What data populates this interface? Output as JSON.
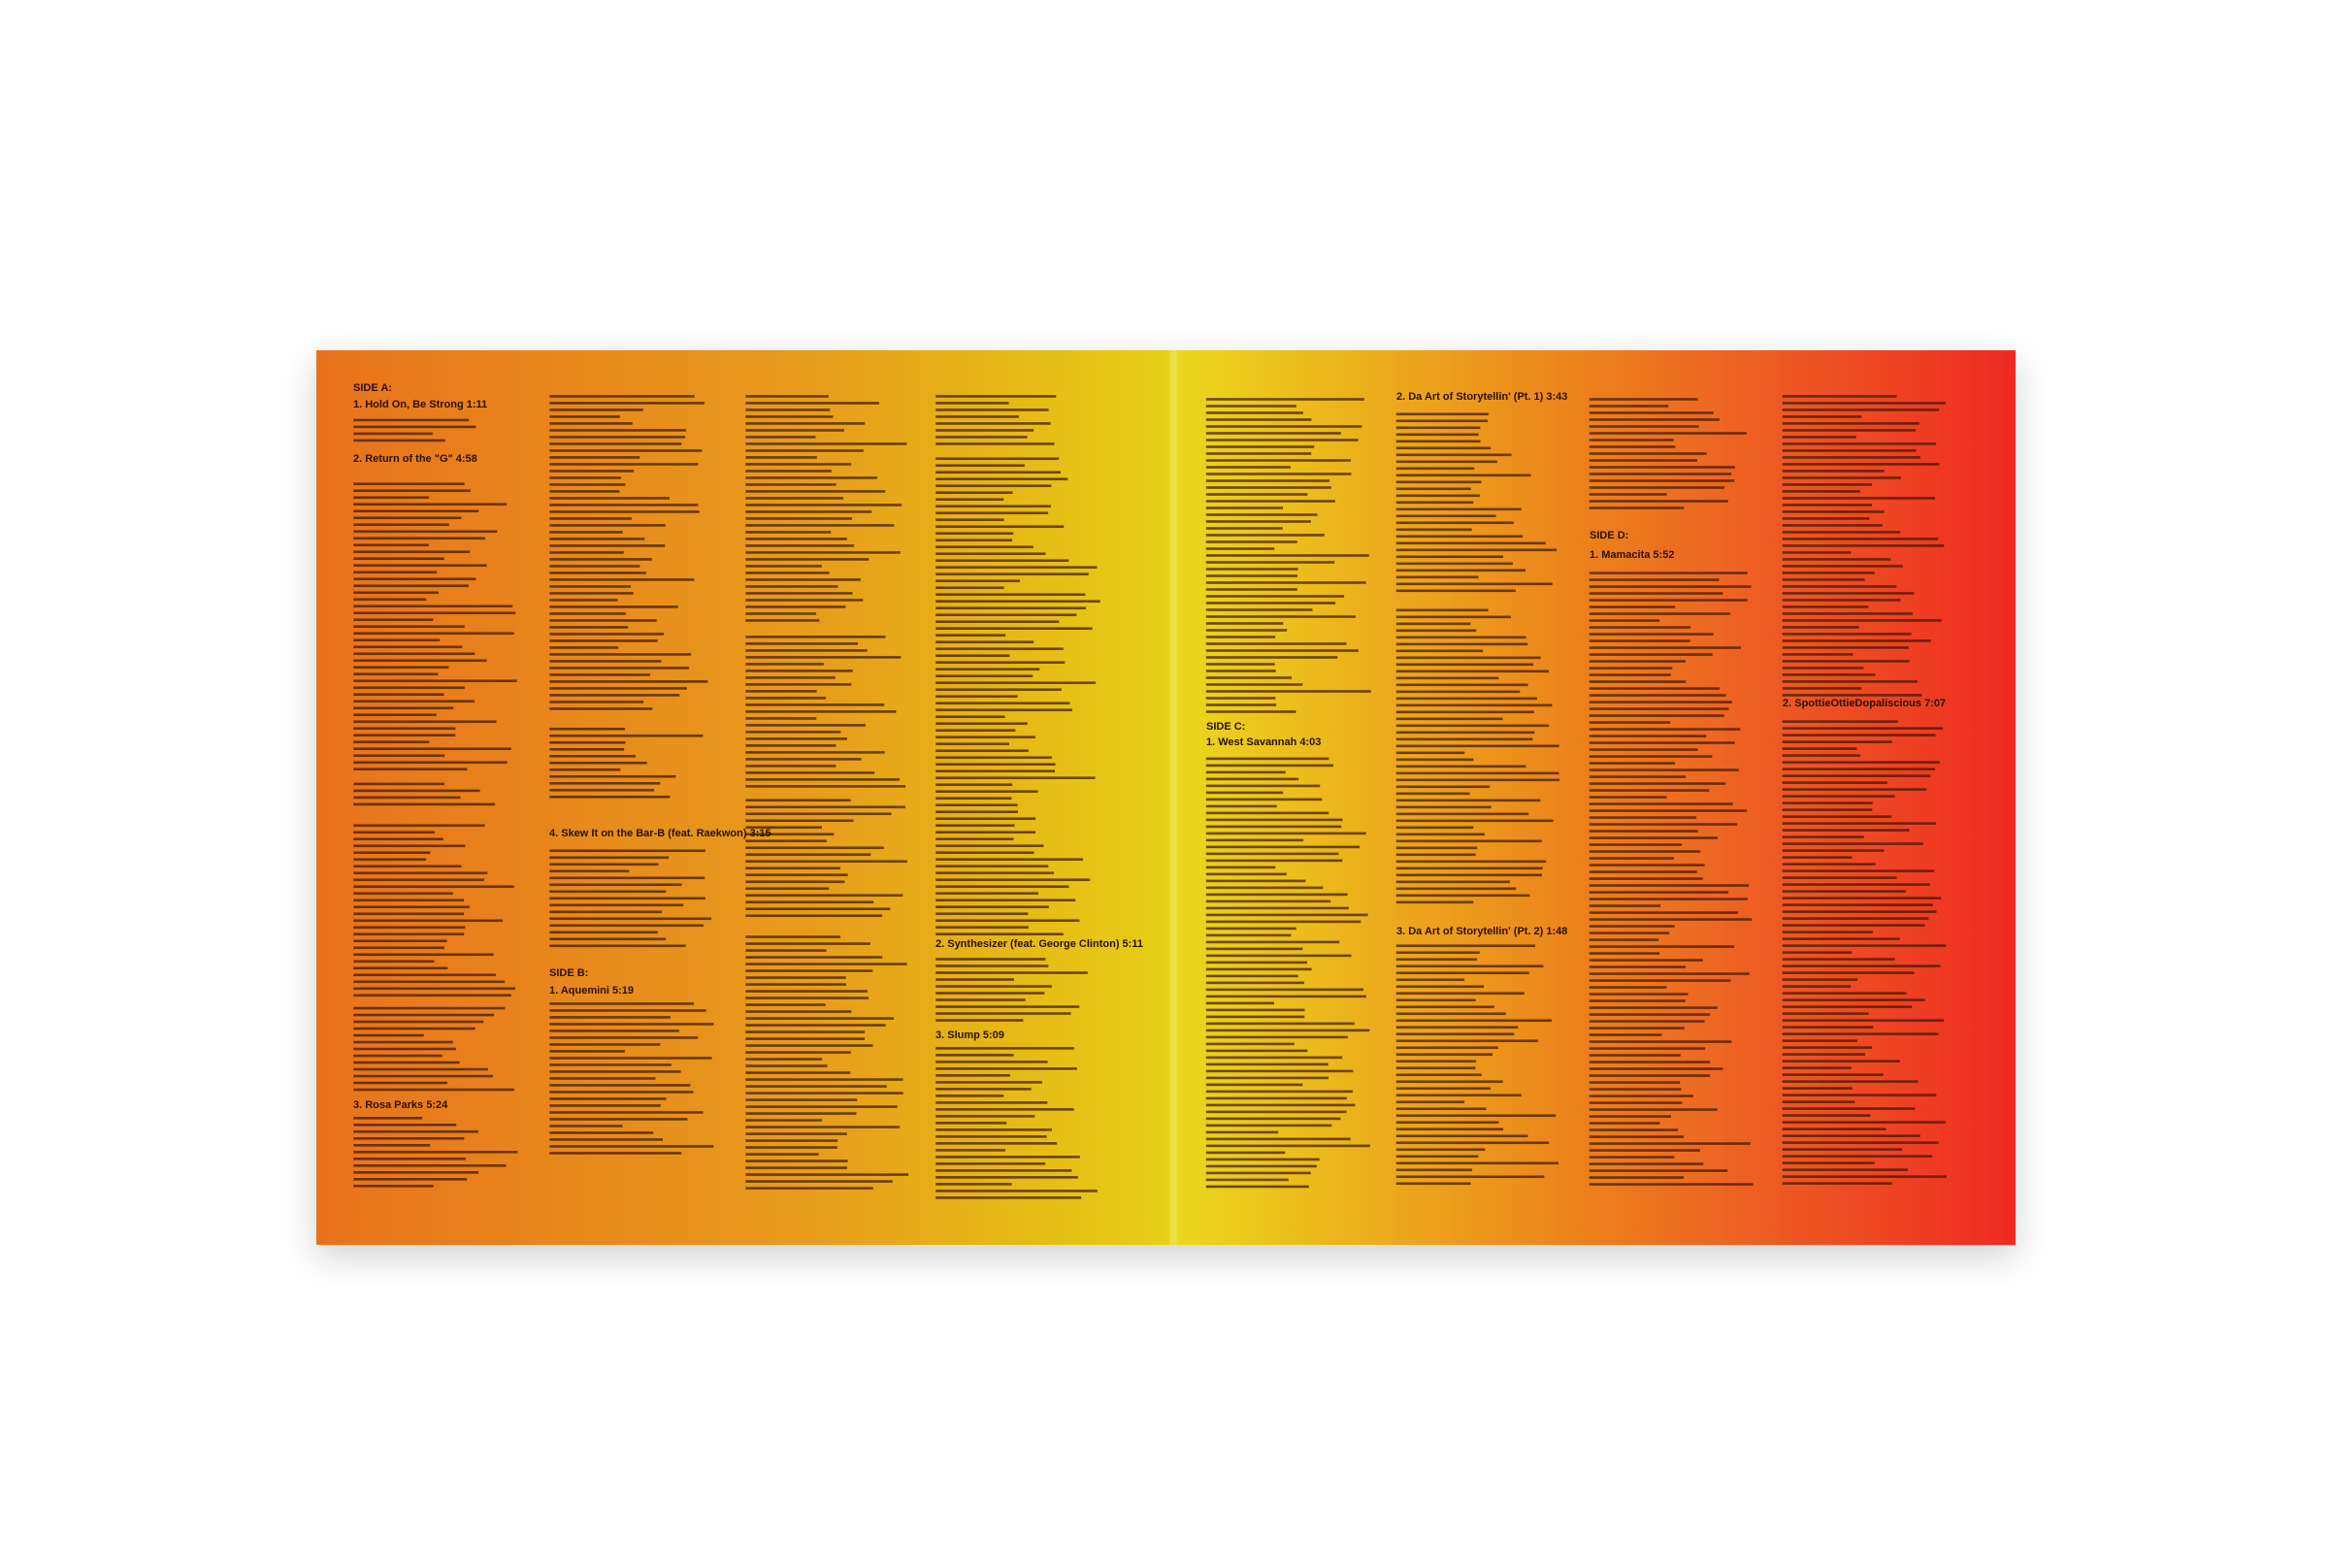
{
  "sides": [
    {
      "label": "SIDE A:",
      "tracks": [
        "1. Hold On, Be Strong 1:11",
        "2. Return of the \"G\" 4:58",
        "3. Rosa Parks 5:24",
        "4. Skew It on the Bar-B (feat. Raekwon) 3:15"
      ]
    },
    {
      "label": "SIDE B:",
      "tracks": [
        "1. Aquemini 5:19",
        "2. Synthesizer (feat. George Clinton) 5:11",
        "3. Slump 5:09"
      ]
    },
    {
      "label": "SIDE C:",
      "tracks": [
        "1. West Savannah 4:03",
        "2. Da Art of Storytellin' (Pt. 1) 3:43",
        "3. Da Art of Storytellin' (Pt. 2) 1:48"
      ]
    },
    {
      "label": "SIDE D:",
      "tracks": [
        "1. Mamacita 5:52",
        "2. SpottieOttieDopaliscious 7:07"
      ]
    }
  ]
}
